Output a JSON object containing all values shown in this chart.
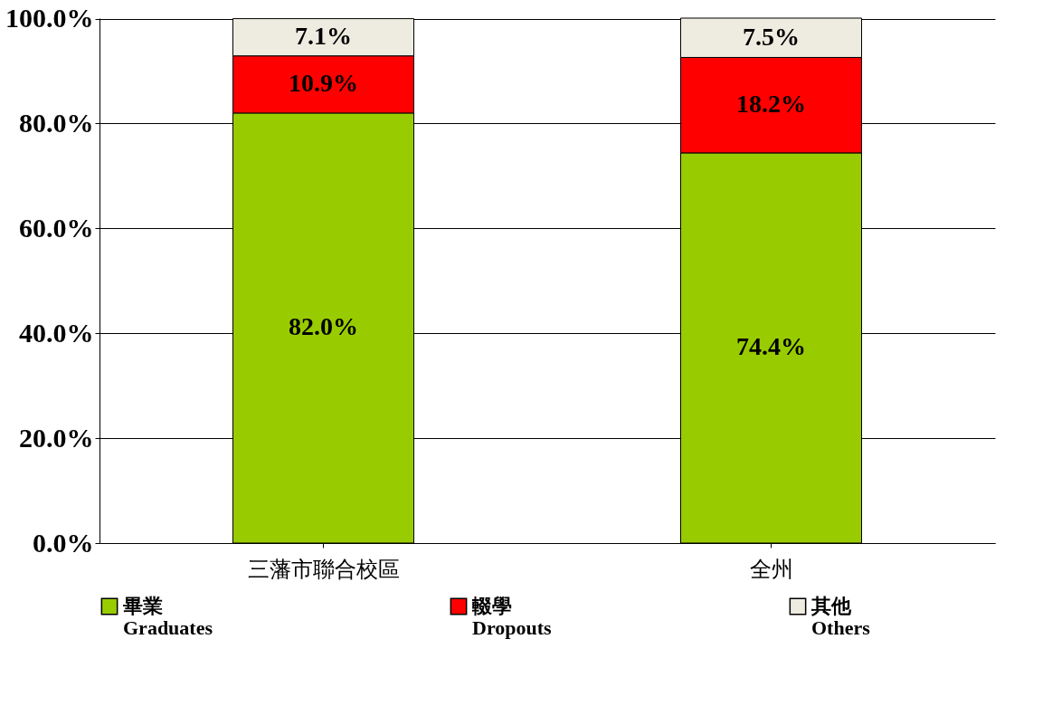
{
  "chart_data": {
    "type": "bar",
    "stacked": true,
    "categories": [
      "三藩市聯合校區",
      "全州"
    ],
    "series": [
      {
        "name": "畢業\nGraduates",
        "color": "#99cc00",
        "values": [
          82.0,
          74.4
        ],
        "value_labels": [
          "82.0%",
          "74.4%"
        ]
      },
      {
        "name": "輟學\nDropouts",
        "color": "#ff0000",
        "values": [
          10.9,
          18.2
        ],
        "value_labels": [
          "10.9%",
          "18.2%"
        ]
      },
      {
        "name": "其他\nOthers",
        "color": "#eeece1",
        "values": [
          7.1,
          7.5
        ],
        "value_labels": [
          "7.1%",
          "7.5%"
        ]
      }
    ],
    "ylim": [
      0,
      100.1
    ],
    "yticks": [
      {
        "value": 0,
        "label": "0.0%"
      },
      {
        "value": 20,
        "label": "20.0%"
      },
      {
        "value": 40,
        "label": "40.0%"
      },
      {
        "value": 60,
        "label": "60.0%"
      },
      {
        "value": 80,
        "label": "80.0%"
      },
      {
        "value": 100,
        "label": "100.0%"
      }
    ],
    "grid": "y",
    "legend": "bottom"
  }
}
